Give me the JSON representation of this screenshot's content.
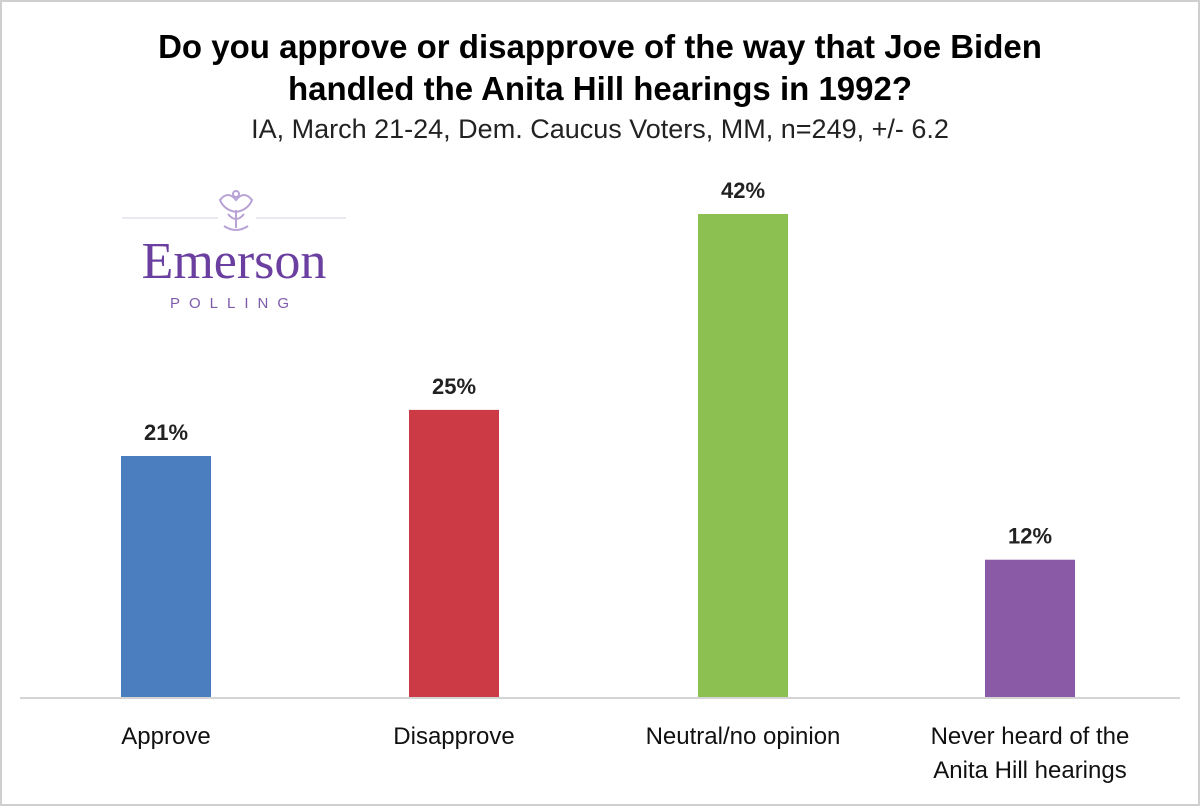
{
  "title_lines": [
    "Do you approve or disapprove of the way that Joe Biden",
    "handled the Anita Hill hearings in 1992?"
  ],
  "subtitle": "IA, March 21-24, Dem. Caucus Voters, MM, n=249, +/- 6.2",
  "logo": {
    "name": "Emerson",
    "sub": "POLLING",
    "color": "#6a3fa0",
    "emblem_icon": "crest-icon"
  },
  "chart_data": {
    "type": "bar",
    "categories": [
      "Approve",
      "Disapprove",
      "Neutral/no opinion",
      "Never heard of the Anita Hill hearings"
    ],
    "category_lines": [
      [
        "Approve"
      ],
      [
        "Disapprove"
      ],
      [
        "Neutral/no opinion"
      ],
      [
        "Never heard of the",
        "Anita Hill hearings"
      ]
    ],
    "values": [
      21,
      25,
      42,
      12
    ],
    "value_labels": [
      "21%",
      "25%",
      "42%",
      "12%"
    ],
    "colors": [
      "#4a7ebf",
      "#cc3a45",
      "#8cc152",
      "#8a5aa6"
    ],
    "ylim": [
      0,
      42
    ],
    "grid": false,
    "legend": "none"
  }
}
